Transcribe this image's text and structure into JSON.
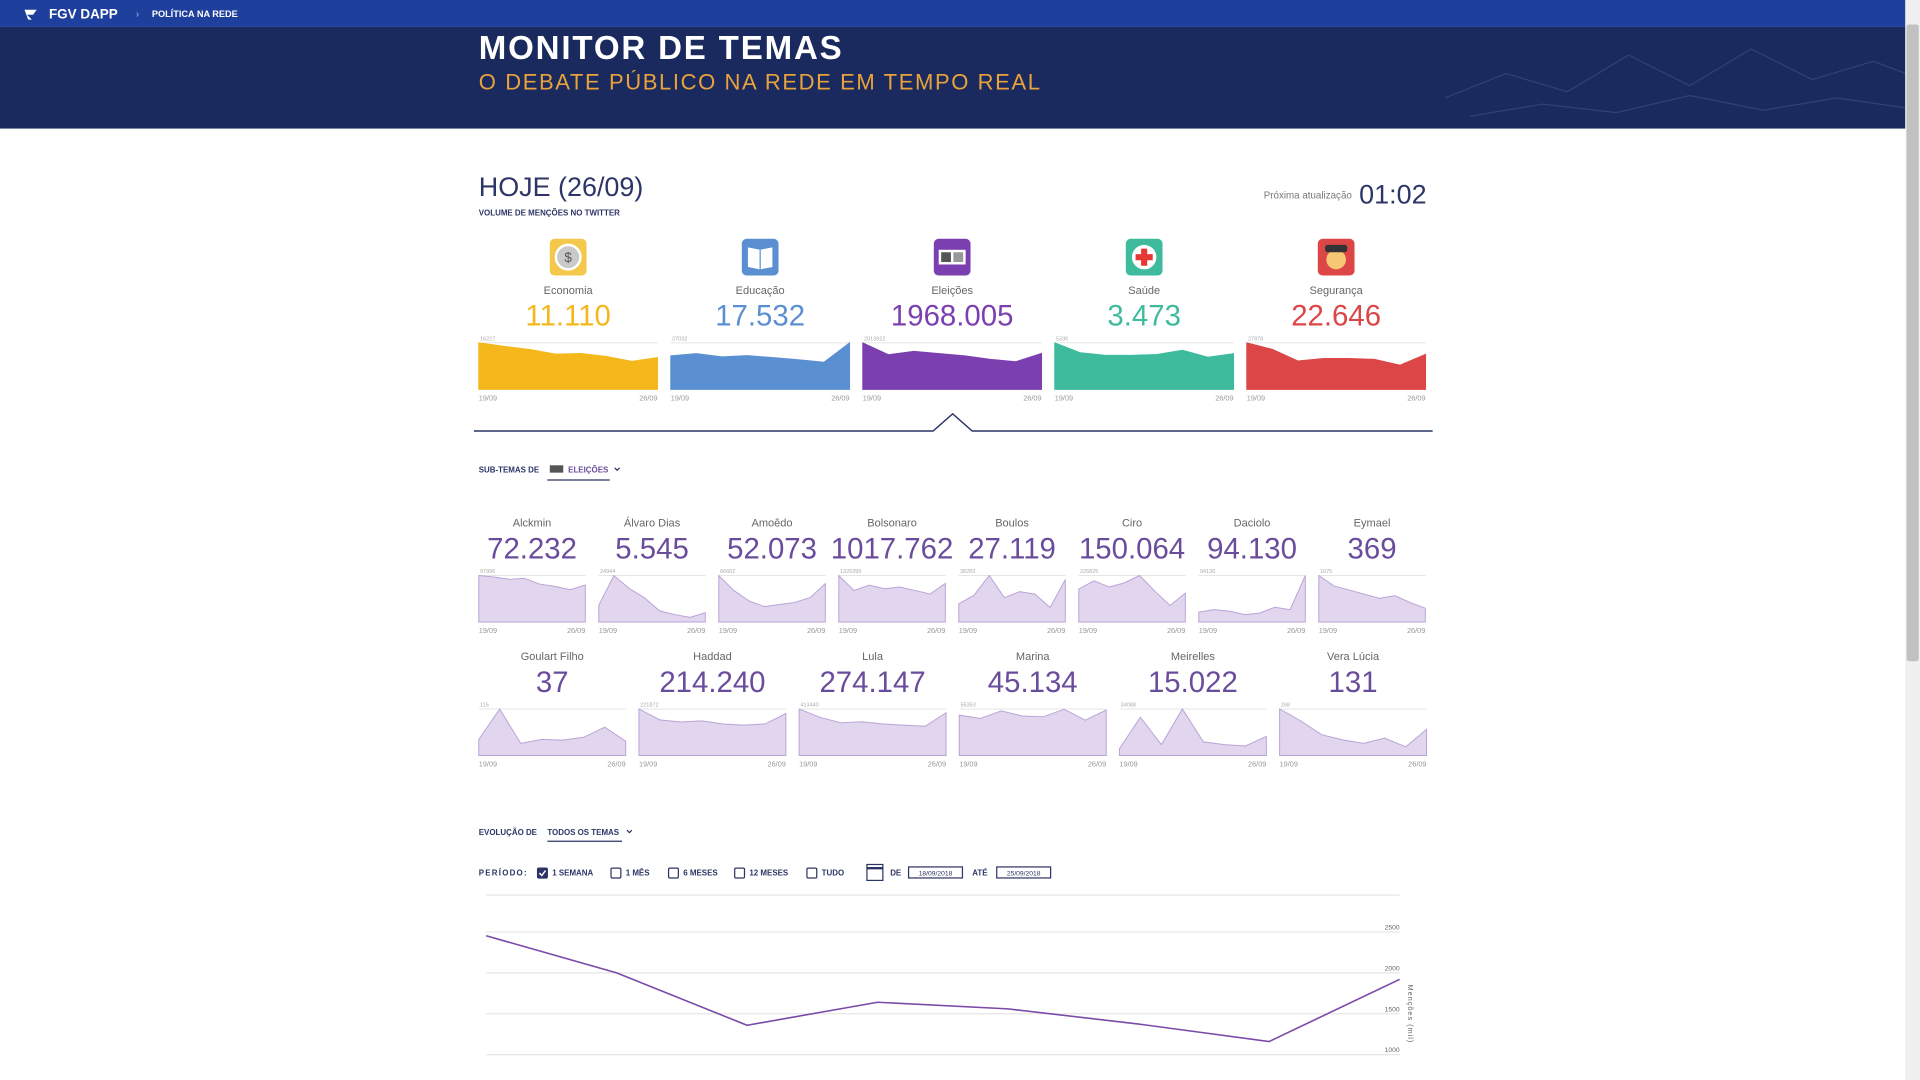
{
  "header": {
    "brand": "FGV DAPP",
    "breadcrumb": "POLÍTICA NA REDE",
    "title": "MONITOR DE TEMAS",
    "subtitle": "O DEBATE PÚBLICO NA REDE EM TEMPO REAL"
  },
  "today": {
    "title": "HOJE (26/09)",
    "subtitle": "VOLUME DE MENÇÕES NO TWITTER",
    "next_update_label": "Próxima atualização",
    "countdown": "01:02"
  },
  "sparkline_dates": [
    "19/09",
    "26/09"
  ],
  "themes": [
    {
      "name": "Economia",
      "value": "11.110",
      "color": "#f4b81c",
      "max": 16227,
      "values": [
        16227,
        15000,
        13900,
        12300,
        12500,
        11500,
        9800,
        11110
      ]
    },
    {
      "name": "Educação",
      "value": "17.532",
      "color": "#5a8fd1",
      "max": 27032,
      "values": [
        19500,
        20800,
        18900,
        19600,
        18400,
        17200,
        15800,
        27032
      ]
    },
    {
      "name": "Eleições",
      "value": "1968.005",
      "color": "#7b3fb0",
      "max": 2013922,
      "values": [
        2013922,
        1500000,
        1650000,
        1550000,
        1450000,
        1300000,
        1200000,
        1560000
      ]
    },
    {
      "name": "Saúde",
      "value": "3.473",
      "color": "#3dbb9c",
      "max": 5336,
      "values": [
        5336,
        4200,
        3900,
        3900,
        4000,
        4500,
        3700,
        4100
      ]
    },
    {
      "name": "Segurança",
      "value": "22.646",
      "color": "#dc4646",
      "max": 27878,
      "values": [
        27878,
        24000,
        17000,
        18500,
        18500,
        18000,
        14500,
        21000
      ]
    }
  ],
  "subthemes_label": "SUB-TEMAS DE",
  "subthemes_selected": "ELEIÇÕES",
  "subtheme_color": "#6a4c9c",
  "subthemes": [
    {
      "name": "Alckmin",
      "value": "72.232",
      "max": 97996,
      "values": [
        97996,
        95000,
        90000,
        92000,
        80000,
        75000,
        68000,
        78000
      ]
    },
    {
      "name": "Álvaro Dias",
      "value": "5.545",
      "max": 24944,
      "values": [
        9000,
        24944,
        18000,
        13000,
        6000,
        4000,
        2500,
        5000
      ]
    },
    {
      "name": "Amoêdo",
      "value": "52.073",
      "max": 66602,
      "values": [
        66602,
        45000,
        30000,
        22000,
        25000,
        28000,
        35000,
        55000
      ]
    },
    {
      "name": "Bolsonaro",
      "value": "1017.762",
      "max": 1326395,
      "values": [
        1326395,
        900000,
        1050000,
        950000,
        1000000,
        900000,
        800000,
        1100000
      ]
    },
    {
      "name": "Boulos",
      "value": "27.119",
      "max": 38283,
      "values": [
        15000,
        22000,
        38283,
        20000,
        25000,
        23000,
        12000,
        35000
      ]
    },
    {
      "name": "Ciro",
      "value": "150.064",
      "max": 225825,
      "values": [
        160000,
        200000,
        170000,
        190000,
        225825,
        150000,
        80000,
        140000
      ]
    },
    {
      "name": "Daciolo",
      "value": "94.130",
      "max": 94130,
      "values": [
        20000,
        25000,
        22000,
        15000,
        18000,
        30000,
        25000,
        94130
      ]
    },
    {
      "name": "Eymael",
      "value": "369",
      "max": 1675,
      "values": [
        1675,
        1300,
        1150,
        1000,
        850,
        950,
        700,
        500
      ]
    },
    {
      "name": "Goulart Filho",
      "value": "37",
      "max": 115,
      "values": [
        40,
        115,
        30,
        40,
        38,
        45,
        70,
        35
      ]
    },
    {
      "name": "Haddad",
      "value": "214.240",
      "max": 221872,
      "values": [
        221872,
        170000,
        160000,
        165000,
        150000,
        145000,
        150000,
        200000
      ]
    },
    {
      "name": "Lula",
      "value": "274.147",
      "max": 413440,
      "values": [
        413440,
        340000,
        290000,
        300000,
        280000,
        270000,
        260000,
        380000
      ]
    },
    {
      "name": "Marina",
      "value": "45.134",
      "max": 55353,
      "values": [
        48000,
        44000,
        53000,
        47000,
        46000,
        55000,
        42000,
        54000
      ]
    },
    {
      "name": "Meirelles",
      "value": "15.022",
      "max": 34088,
      "values": [
        5000,
        28000,
        8000,
        34088,
        10000,
        8000,
        7000,
        14000
      ]
    },
    {
      "name": "Vera Lúcia",
      "value": "131",
      "max": 268,
      "values": [
        268,
        200,
        120,
        90,
        70,
        100,
        50,
        150
      ]
    }
  ],
  "evolution": {
    "label": "EVOLUÇÃO DE",
    "selected": "TODOS OS TEMAS",
    "period_label": "PERÍODO:",
    "periods": [
      {
        "label": "1 SEMANA",
        "checked": true
      },
      {
        "label": "1 MÊS",
        "checked": false
      },
      {
        "label": "6 MESES",
        "checked": false
      },
      {
        "label": "12 MESES",
        "checked": false
      },
      {
        "label": "TUDO",
        "checked": false
      }
    ],
    "from_label": "DE",
    "from": "18/09/2018",
    "to_label": "ATÉ",
    "to": "25/09/2018",
    "chart": {
      "type": "line",
      "y_label": "Menções (mil)",
      "color": "#7b4aa9",
      "values": [
        2453,
        2000,
        1360,
        1640,
        1560,
        1375,
        1160,
        1920
      ],
      "ylim": [
        900,
        2950
      ],
      "yticks": [
        1000,
        1500,
        2000,
        2500
      ],
      "grid": true
    }
  }
}
